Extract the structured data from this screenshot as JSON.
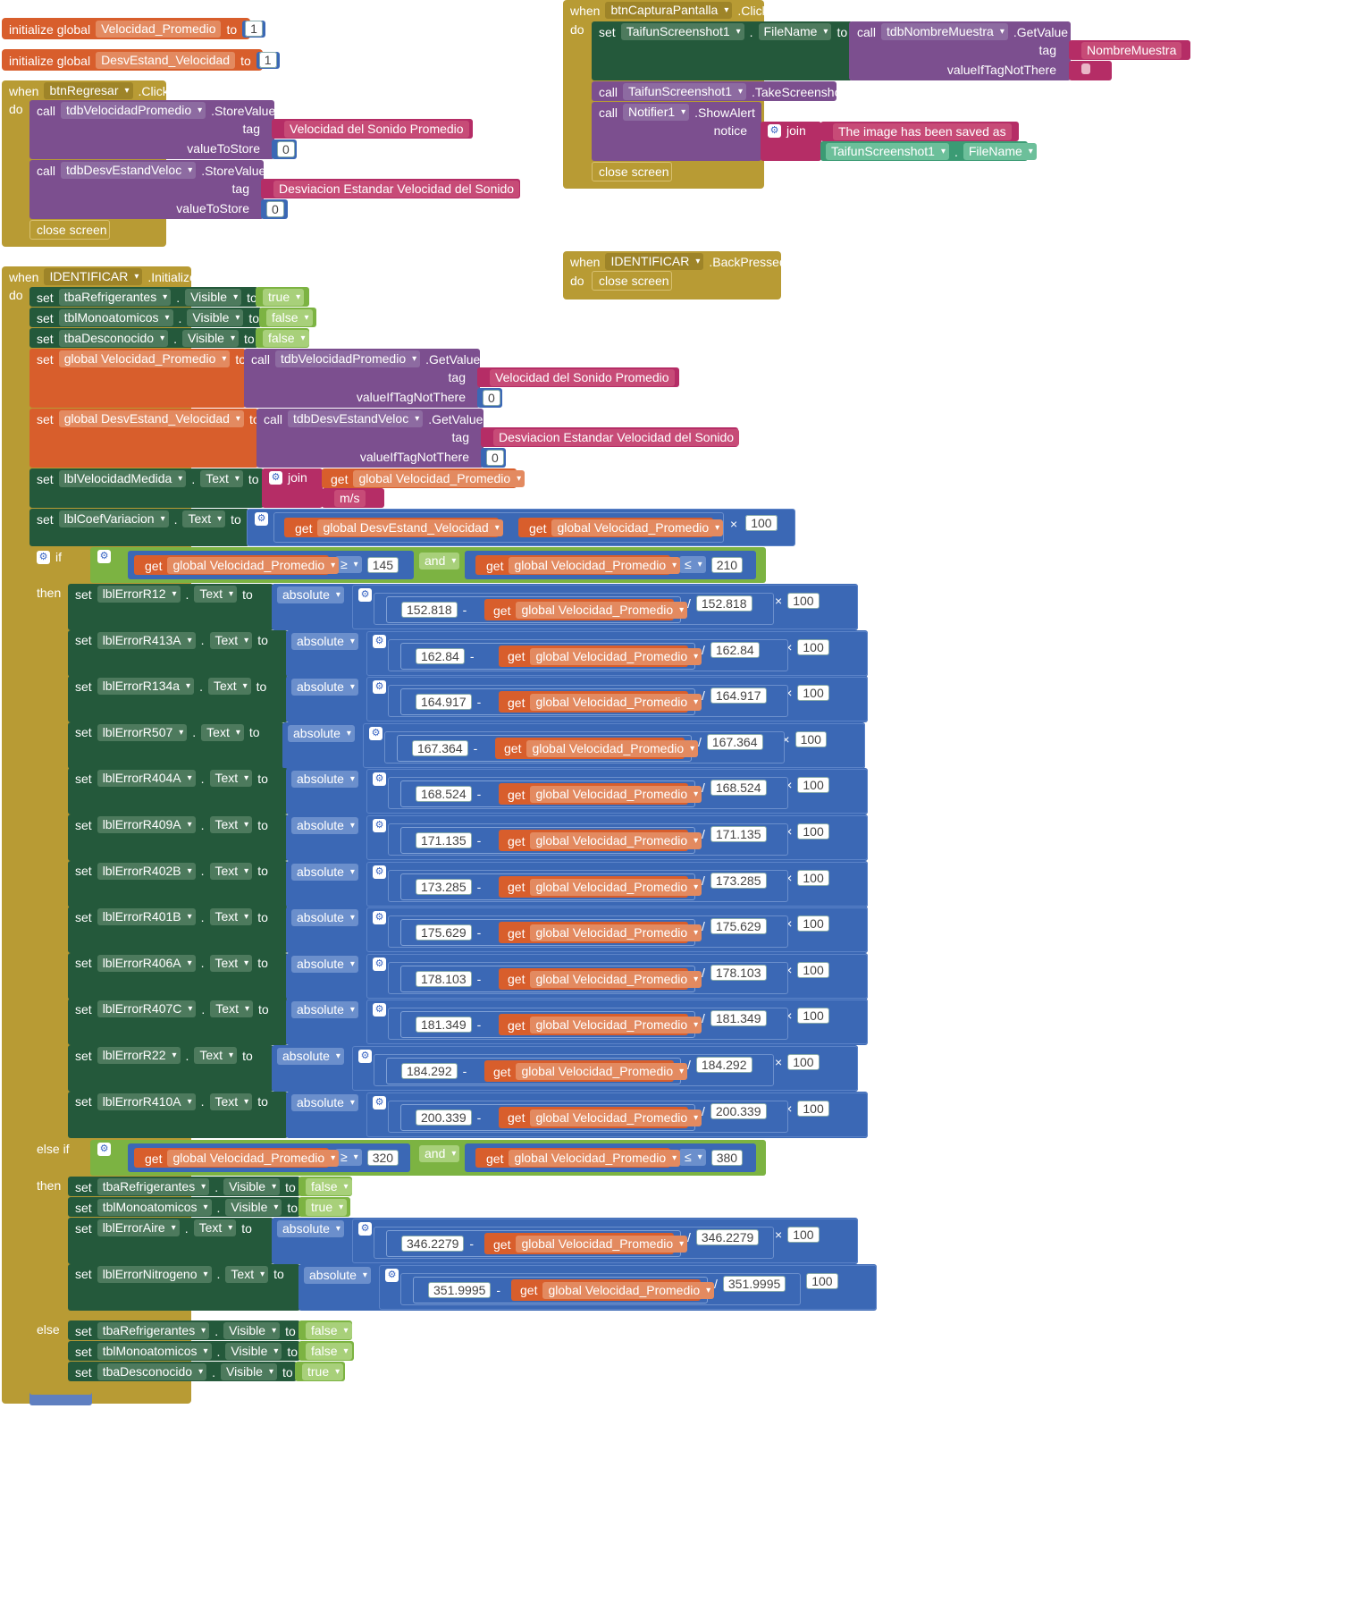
{
  "init1": {
    "kw": "initialize global",
    "name": "Velocidad_Promedio",
    "to": "to",
    "value": "1"
  },
  "init2": {
    "kw": "initialize global",
    "name": "DesvEstand_Velocidad",
    "to": "to",
    "value": "1"
  },
  "kw": {
    "when": "when",
    "do": "do",
    "call": "call",
    "set": "set",
    "get": "get",
    "to": "to",
    "tag": "tag",
    "valueToStore": "valueToStore",
    "valueIfTagNotThere": "valueIfTagNotThere",
    "close": "close screen",
    "join": "join",
    "if": "if",
    "then": "then",
    "elseif": "else if",
    "else": "else",
    "and": "and",
    "absolute": "absolute",
    "minus": "-",
    "div": "/",
    "times": "×",
    "notice": "notice",
    "true": "true",
    "false": "false",
    "ge": "≥",
    "le": "≤",
    "text": "Text",
    "visible": "Visible"
  },
  "regresar": {
    "component": "btnRegresar",
    "event": ".Click",
    "c1": {
      "db": "tdbVelocidadPromedio",
      "method": ".StoreValue",
      "tag": "Velocidad del Sonido Promedio",
      "value": "0"
    },
    "c2": {
      "db": "tdbDesvEstandVeloc",
      "method": ".StoreValue",
      "tag": "Desviacion Estandar Velocidad del Sonido",
      "value": "0"
    }
  },
  "captura": {
    "component": "btnCapturaPantalla",
    "event": ".Click",
    "set_comp": "TaifunScreenshot1",
    "set_prop": "FileName",
    "get_db": "tdbNombreMuestra",
    "get_method": ".GetValue",
    "get_tag": "NombreMuestra",
    "take_comp": "TaifunScreenshot1",
    "take_method": ".TakeScreenshot",
    "notif": "Notifier1",
    "notif_method": ".ShowAlert",
    "msg": "The image has been saved as ",
    "fn_comp": "TaifunScreenshot1",
    "fn_prop": "FileName"
  },
  "back": {
    "component": "IDENTIFICAR",
    "event": ".BackPressed"
  },
  "ident": {
    "component": "IDENTIFICAR",
    "event": ".Initialize",
    "vis": [
      {
        "c": "tbaRefrigerantes",
        "v": "true"
      },
      {
        "c": "tblMonoatomicos",
        "v": "false"
      },
      {
        "c": "tbaDesconocido",
        "v": "false"
      }
    ],
    "g1": {
      "var": "global Velocidad_Promedio",
      "db": "tdbVelocidadPromedio",
      "tag": "Velocidad del Sonido Promedio",
      "def": "0"
    },
    "g2": {
      "var": "global DesvEstand_Velocidad",
      "db": "tdbDesvEstandVeloc",
      "tag": "Desviacion Estandar Velocidad del Sonido",
      "def": "0"
    },
    "lbl1": {
      "c": "lblVelocidadMedida",
      "getv": "global Velocidad_Promedio",
      "unit": " m/s "
    },
    "lbl2": {
      "c": "lblCoefVariacion",
      "a": "global DesvEstand_Velocidad",
      "b": "global Velocidad_Promedio",
      "m": "100"
    },
    "cond1": {
      "v": "global Velocidad_Promedio",
      "lo": "145",
      "hi": "210"
    },
    "errors": [
      {
        "c": "lblErrorR12",
        "v": "152.818"
      },
      {
        "c": "lblErrorR413A",
        "v": "162.84"
      },
      {
        "c": "lblErrorR134a",
        "v": "164.917"
      },
      {
        "c": "lblErrorR507",
        "v": "167.364"
      },
      {
        "c": "lblErrorR404A",
        "v": "168.524"
      },
      {
        "c": "lblErrorR409A",
        "v": "171.135"
      },
      {
        "c": "lblErrorR402B",
        "v": "173.285"
      },
      {
        "c": "lblErrorR401B",
        "v": "175.629"
      },
      {
        "c": "lblErrorR406A",
        "v": "178.103"
      },
      {
        "c": "lblErrorR407C",
        "v": "181.349"
      },
      {
        "c": "lblErrorR22",
        "v": "184.292"
      },
      {
        "c": "lblErrorR410A",
        "v": "200.339"
      }
    ],
    "errGet": "global Velocidad_Promedio",
    "hundred": "100",
    "cond2": {
      "v": "global Velocidad_Promedio",
      "lo": "320",
      "hi": "380"
    },
    "vis2": [
      {
        "c": "tbaRefrigerantes",
        "v": "false"
      },
      {
        "c": "tblMonoatomicos",
        "v": "true"
      }
    ],
    "err2": [
      {
        "c": "lblErrorAire",
        "v": "346.2279"
      },
      {
        "c": "lblErrorNitrogeno",
        "v": "351.9995"
      }
    ],
    "vis3": [
      {
        "c": "tbaRefrigerantes",
        "v": "false"
      },
      {
        "c": "tblMonoatomicos",
        "v": "false"
      },
      {
        "c": "tbaDesconocido",
        "v": "true"
      }
    ]
  }
}
